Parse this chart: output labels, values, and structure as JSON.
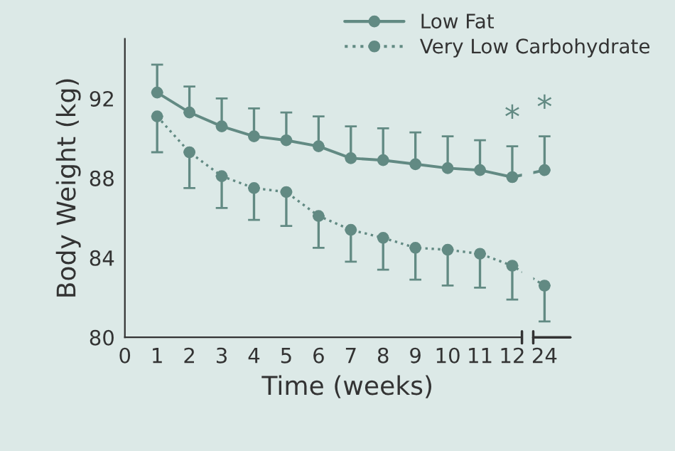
{
  "chart_data": {
    "type": "line",
    "ylabel": "Body Weight (kg)",
    "xlabel": "Time (weeks)",
    "categories": [
      "0",
      "1",
      "2",
      "3",
      "4",
      "5",
      "6",
      "7",
      "8",
      "9",
      "10",
      "11",
      "12",
      "24"
    ],
    "ylim": [
      80,
      95
    ],
    "yticks": [
      80,
      84,
      88,
      92
    ],
    "grid": false,
    "legend": "top right",
    "marker": "circle",
    "series": [
      {
        "name": "Low Fat",
        "color": "#628a83",
        "line_style": "solid",
        "values": [
          null,
          92.3,
          91.3,
          90.6,
          90.1,
          89.9,
          89.6,
          89.0,
          88.9,
          88.7,
          88.5,
          88.4,
          88.05,
          88.4
        ],
        "errors": [
          null,
          [
            92.3,
            93.7
          ],
          [
            91.3,
            92.6
          ],
          [
            90.6,
            92.0
          ],
          [
            90.1,
            91.5
          ],
          [
            89.9,
            91.3
          ],
          [
            89.6,
            91.1
          ],
          [
            89.0,
            90.6
          ],
          [
            88.9,
            90.5
          ],
          [
            88.7,
            90.3
          ],
          [
            88.5,
            90.1
          ],
          [
            88.4,
            89.9
          ],
          [
            88.05,
            89.6
          ],
          [
            88.4,
            90.1
          ]
        ]
      },
      {
        "name": "Very Low Carbohydrate",
        "color": "#628a83",
        "line_style": "dotted",
        "values": [
          null,
          91.1,
          89.3,
          88.1,
          87.5,
          87.3,
          86.1,
          85.4,
          85.0,
          84.5,
          84.4,
          84.2,
          83.6,
          82.6
        ],
        "errors": [
          null,
          [
            89.3,
            91.1
          ],
          [
            87.5,
            89.3
          ],
          [
            86.5,
            88.1
          ],
          [
            85.9,
            87.5
          ],
          [
            85.6,
            87.3
          ],
          [
            84.5,
            86.1
          ],
          [
            83.8,
            85.4
          ],
          [
            83.4,
            85.0
          ],
          [
            82.9,
            84.5
          ],
          [
            82.6,
            84.4
          ],
          [
            82.5,
            84.2
          ],
          [
            81.9,
            83.6
          ],
          [
            80.8,
            82.6
          ]
        ]
      }
    ],
    "annotations": [
      {
        "text": "*",
        "x": "12",
        "y": 89.6
      },
      {
        "text": "*",
        "x": "24",
        "y": 90.1
      }
    ]
  }
}
